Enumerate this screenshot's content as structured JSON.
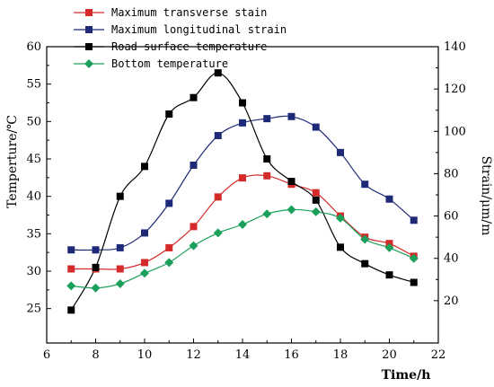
{
  "chart_data": {
    "type": "line",
    "xlabel": "Time/h",
    "ylabel_left": "Temperture/℃",
    "ylabel_right": "Strain/μm/m",
    "x_ticks": [
      "6",
      "8",
      "10",
      "12",
      "14",
      "16",
      "18",
      "20",
      "22"
    ],
    "y_left_ticks": [
      "25",
      "30",
      "35",
      "40",
      "45",
      "50",
      "55",
      "60"
    ],
    "y_right_ticks": [
      "20",
      "40",
      "60",
      "80",
      "100",
      "120",
      "140"
    ],
    "xlim": [
      6,
      22
    ],
    "ylim_left": [
      20.4,
      60
    ],
    "ylim_right": [
      0,
      140
    ],
    "legend_position": "top-left",
    "series": [
      {
        "name": "Maximum transverse stain",
        "axis": "right",
        "color": "#d42a2a",
        "marker": "square",
        "x": [
          7,
          8,
          9,
          10,
          11,
          12,
          13,
          14,
          15,
          16,
          17,
          18,
          19,
          20,
          21
        ],
        "y": [
          35,
          35,
          35,
          38,
          45,
          55,
          69,
          78,
          79,
          75,
          71,
          60,
          50,
          47,
          41
        ]
      },
      {
        "name": "Maximum longitudinal strain",
        "axis": "right",
        "color": "#1e2a78",
        "marker": "square",
        "x": [
          7,
          8,
          9,
          10,
          11,
          12,
          13,
          14,
          15,
          16,
          17,
          18,
          19,
          20,
          21
        ],
        "y": [
          44,
          44,
          45,
          52,
          66,
          84,
          98,
          104,
          106,
          107,
          102,
          90,
          75,
          68,
          58
        ]
      },
      {
        "name": "Road surface temperature",
        "axis": "left",
        "color": "#000000",
        "marker": "square",
        "x": [
          7,
          8,
          9,
          10,
          11,
          12,
          13,
          14,
          15,
          16,
          17,
          18,
          19,
          20,
          21
        ],
        "y": [
          24.8,
          30.5,
          40.0,
          44.0,
          51.0,
          53.2,
          56.5,
          52.5,
          45.0,
          42.0,
          39.5,
          33.2,
          31.0,
          29.5,
          28.5
        ]
      },
      {
        "name": "Bottom temperature",
        "axis": "right",
        "color": "#1aa05a",
        "marker": "diamond",
        "x": [
          7,
          8,
          9,
          10,
          11,
          12,
          13,
          14,
          15,
          16,
          17,
          18,
          19,
          20,
          21
        ],
        "y": [
          27,
          26,
          28,
          33,
          38,
          46,
          52,
          56,
          61,
          63,
          62,
          59,
          49,
          45,
          40
        ]
      }
    ]
  }
}
